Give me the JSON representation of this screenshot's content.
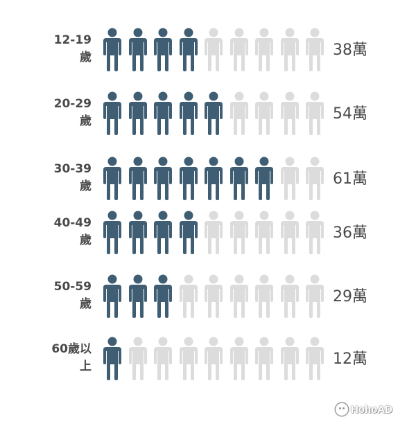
{
  "chart_data": {
    "type": "pictograph",
    "icons_per_row": 9,
    "unit": "萬",
    "colors": {
      "filled": "#3f5e74",
      "empty": "#dcdcdc"
    },
    "rows": [
      {
        "label": "12-19\n歲",
        "filled_icons": 4,
        "value": 38,
        "value_label": "38萬"
      },
      {
        "label": "20-29\n歲",
        "filled_icons": 5,
        "value": 54,
        "value_label": "54萬"
      },
      {
        "label": "30-39\n歲",
        "filled_icons": 7,
        "value": 61,
        "value_label": "61萬"
      },
      {
        "label": "40-49\n歲",
        "filled_icons": 4,
        "value": 36,
        "value_label": "36萬"
      },
      {
        "label": "50-59\n歲",
        "filled_icons": 3,
        "value": 29,
        "value_label": "29萬"
      },
      {
        "label": "60歲以\n上",
        "filled_icons": 1,
        "value": 12,
        "value_label": "12萬"
      }
    ]
  },
  "watermark": {
    "text": "HohoAD",
    "icon": "smiley-face-icon"
  }
}
